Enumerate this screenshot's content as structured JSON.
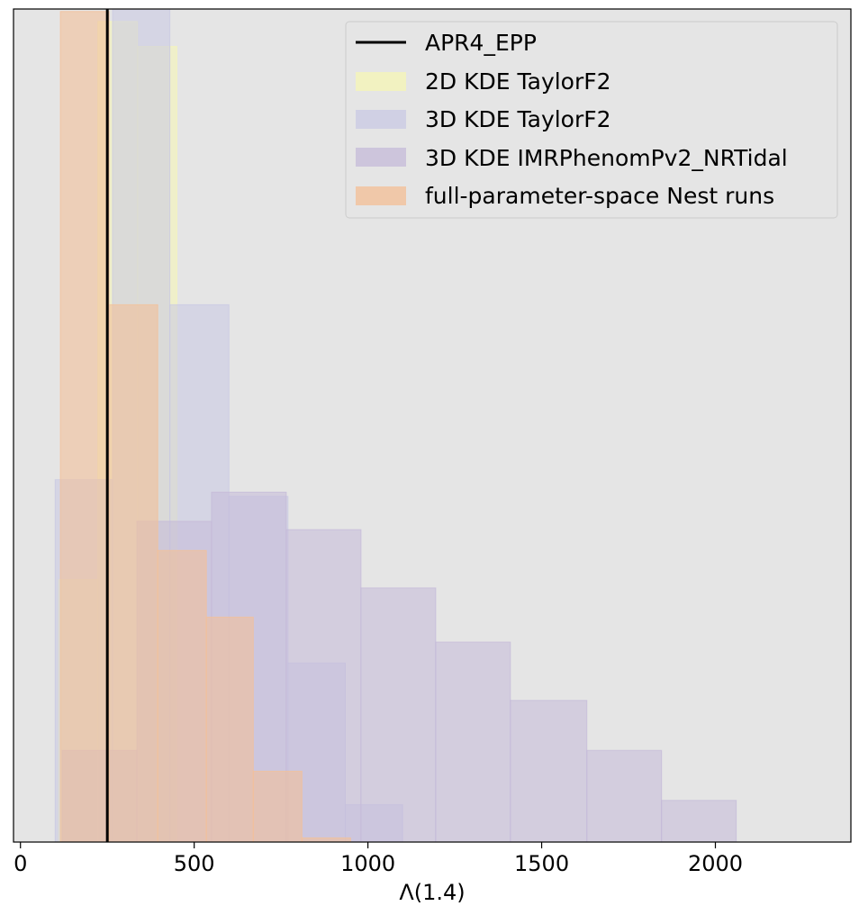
{
  "chart_data": {
    "type": "histogram",
    "xlabel": "Λ(1.4)",
    "ylabel": "",
    "xlim": [
      -20,
      2390
    ],
    "ylim": [
      0,
      1.0
    ],
    "x_ticks": [
      0,
      500,
      1000,
      1500,
      2000
    ],
    "y_ticks_shown": false,
    "grid": false,
    "background_color": "#e5e5e5",
    "legend_position": "top-right",
    "vline": {
      "name": "APR4_EPP",
      "x": 250,
      "color": "#000000"
    },
    "series": [
      {
        "name": "2D KDE TaylorF2",
        "color": "#f5f5b8",
        "opacity": 0.6,
        "bin_edges": [
          110,
          223,
          337,
          450
        ],
        "values": [
          0.315,
          0.985,
          0.955
        ]
      },
      {
        "name": "3D KDE TaylorF2",
        "color": "#c8c8e3",
        "opacity": 0.55,
        "bin_edges": [
          100,
          265,
          430,
          600,
          770,
          935,
          1100
        ],
        "values": [
          0.435,
          1.0,
          0.645,
          0.415,
          0.215,
          0.045
        ]
      },
      {
        "name": "3D KDE IMRPhenomPv2_NRTidal",
        "color": "#c4b9d8",
        "opacity": 0.55,
        "bin_edges": [
          120,
          335,
          550,
          765,
          980,
          1195,
          1410,
          1630,
          1845,
          2060,
          2275
        ],
        "values": [
          0.11,
          0.385,
          0.42,
          0.375,
          0.305,
          0.24,
          0.17,
          0.11,
          0.05,
          0.0
        ]
      },
      {
        "name": "full-parameter-space Nest runs",
        "color": "#f2c09a",
        "opacity": 0.6,
        "bin_edges": [
          115,
          255,
          395,
          535,
          670,
          810,
          950,
          1090
        ],
        "values": [
          0.997,
          0.645,
          0.35,
          0.27,
          0.085,
          0.005,
          0.0
        ]
      }
    ]
  }
}
